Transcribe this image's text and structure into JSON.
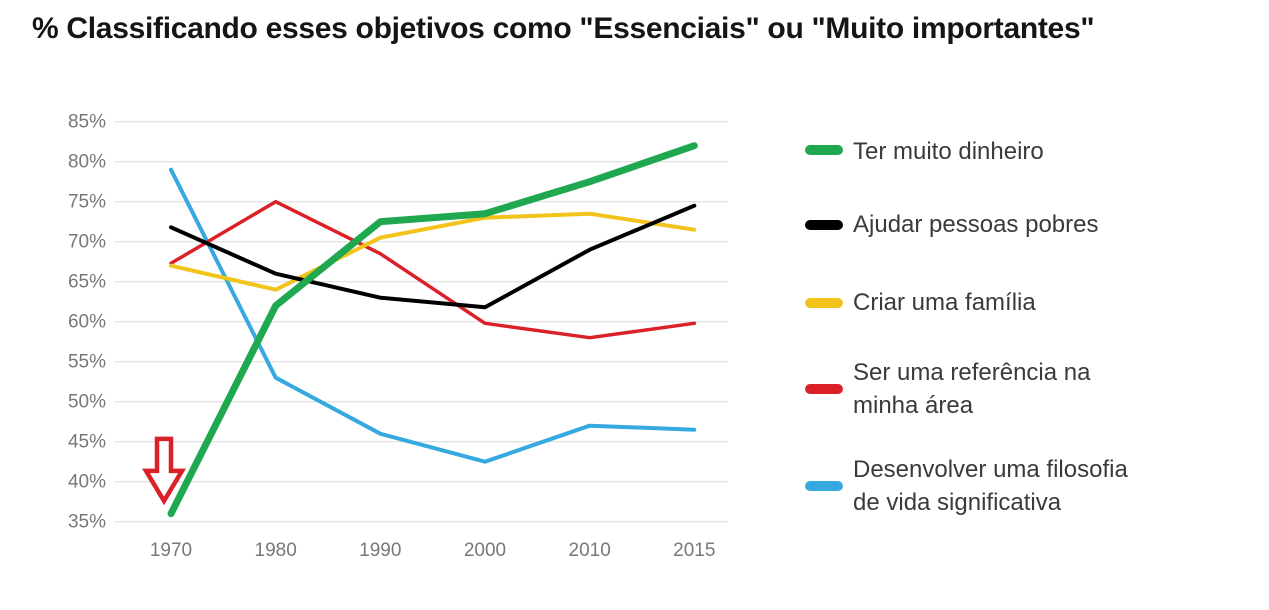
{
  "title": "% Classificando esses objetivos como \"Essenciais\" ou \"Muito importantes\"",
  "chart_data": {
    "type": "line",
    "x_categories": [
      "1970",
      "1980",
      "1990",
      "2000",
      "2010",
      "2015"
    ],
    "y_axis": {
      "min": 35,
      "max": 85,
      "step": 5,
      "tick_suffix": "%"
    },
    "grid": true,
    "grid_color": "#d9d9d9",
    "tick_label_color": "#77787b",
    "legend_position": "right",
    "series": [
      {
        "name": "Ter muito dinheiro",
        "color": "#1fa84f",
        "stroke_width": 7,
        "values": [
          36,
          62,
          72.5,
          73.5,
          77.5,
          82
        ]
      },
      {
        "name": "Ajudar pessoas pobres",
        "color": "#000000",
        "stroke_width": 4,
        "values": [
          71.8,
          66,
          63,
          61.8,
          69,
          74.5
        ]
      },
      {
        "name": "Criar uma família",
        "color": "#f2c31b",
        "stroke_width": 4,
        "values": [
          67,
          64,
          70.5,
          73,
          73.5,
          71.5
        ]
      },
      {
        "name": "Ser uma referência na minha área",
        "color": "#db2128",
        "stroke_width": 3.5,
        "values": [
          67.3,
          75,
          68.5,
          59.8,
          58,
          59.8
        ]
      },
      {
        "name": "Desenvolver uma filosofia de vida significativa",
        "color": "#36a9e0",
        "stroke_width": 4,
        "values": [
          79,
          53,
          46,
          42.5,
          47,
          46.5
        ]
      }
    ],
    "annotation": {
      "shape": "hollow-down-arrow",
      "color": "#db2128",
      "x_category": "1970",
      "points_at_series": "Ter muito dinheiro",
      "value_top": 45.35,
      "value_tip": 37.6
    }
  }
}
